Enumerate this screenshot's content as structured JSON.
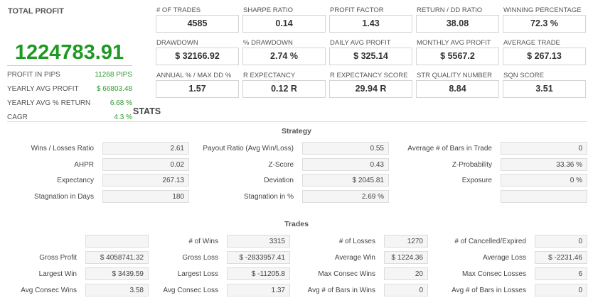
{
  "total_profit": {
    "title": "TOTAL PROFIT",
    "value": "1224783.91",
    "color": "#1e9a23",
    "rows": [
      {
        "label": "PROFIT IN PIPS",
        "value": "11268 PIPS"
      },
      {
        "label": "YEARLY AVG PROFIT",
        "value": "$ 66803.48"
      },
      {
        "label": "YEARLY AVG % RETURN",
        "value": "6.68 %"
      },
      {
        "label": "CAGR",
        "value": "4.3 %"
      }
    ]
  },
  "cards": [
    [
      {
        "label": "# OF TRADES",
        "value": "4585"
      },
      {
        "label": "SHARPE RATIO",
        "value": "0.14"
      },
      {
        "label": "PROFIT FACTOR",
        "value": "1.43"
      },
      {
        "label": "RETURN / DD RATIO",
        "value": "38.08"
      },
      {
        "label": "WINNING PERCENTAGE",
        "value": "72.3 %"
      }
    ],
    [
      {
        "label": "DRAWDOWN",
        "value": "$ 32166.92"
      },
      {
        "label": "% DRAWDOWN",
        "value": "2.74 %"
      },
      {
        "label": "DAILY AVG PROFIT",
        "value": "$ 325.14"
      },
      {
        "label": "MONTHLY AVG PROFIT",
        "value": "$ 5567.2"
      },
      {
        "label": "AVERAGE TRADE",
        "value": "$ 267.13"
      }
    ],
    [
      {
        "label": "ANNUAL % / MAX DD %",
        "value": "1.57"
      },
      {
        "label": "R EXPECTANCY",
        "value": "0.12 R"
      },
      {
        "label": "R EXPECTANCY SCORE",
        "value": "29.94 R"
      },
      {
        "label": "STR QUALITY NUMBER",
        "value": "8.84"
      },
      {
        "label": "SQN SCORE",
        "value": "3.51"
      }
    ]
  ],
  "stats_title": "STATS",
  "strategy": {
    "title": "Strategy",
    "rows": [
      [
        {
          "label": "Wins / Losses Ratio",
          "value": "2.61"
        },
        {
          "label": "Payout Ratio (Avg Win/Loss)",
          "value": "0.55"
        },
        {
          "label": "Average # of Bars in Trade",
          "value": "0"
        }
      ],
      [
        {
          "label": "AHPR",
          "value": "0.02"
        },
        {
          "label": "Z-Score",
          "value": "0.43"
        },
        {
          "label": "Z-Probability",
          "value": "33.36 %"
        }
      ],
      [
        {
          "label": "Expectancy",
          "value": "267.13"
        },
        {
          "label": "Deviation",
          "value": "$ 2045.81"
        },
        {
          "label": "Exposure",
          "value": "0 %"
        }
      ],
      [
        {
          "label": "Stagnation in Days",
          "value": "180"
        },
        {
          "label": "Stagnation in %",
          "value": "2.69 %"
        },
        {
          "label": "",
          "value": ""
        }
      ]
    ]
  },
  "trades": {
    "title": "Trades",
    "rows": [
      [
        {
          "label": "",
          "value": ""
        },
        {
          "label": "# of Wins",
          "value": "3315"
        },
        {
          "label": "# of Losses",
          "value": "1270"
        },
        {
          "label": "# of Cancelled/Expired",
          "value": "0"
        }
      ],
      [
        {
          "label": "Gross Profit",
          "value": "$ 4058741.32"
        },
        {
          "label": "Gross Loss",
          "value": "$ -2833957.41"
        },
        {
          "label": "Average Win",
          "value": "$ 1224.36"
        },
        {
          "label": "Average Loss",
          "value": "$ -2231.46"
        }
      ],
      [
        {
          "label": "Largest Win",
          "value": "$ 3439.59"
        },
        {
          "label": "Largest Loss",
          "value": "$ -11205.8"
        },
        {
          "label": "Max Consec Wins",
          "value": "20"
        },
        {
          "label": "Max Consec Losses",
          "value": "6"
        }
      ],
      [
        {
          "label": "Avg Consec Wins",
          "value": "3.58"
        },
        {
          "label": "Avg Consec Loss",
          "value": "1.37"
        },
        {
          "label": "Avg # of Bars in Wins",
          "value": "0"
        },
        {
          "label": "Avg # of Bars in Losses",
          "value": "0"
        }
      ]
    ]
  }
}
